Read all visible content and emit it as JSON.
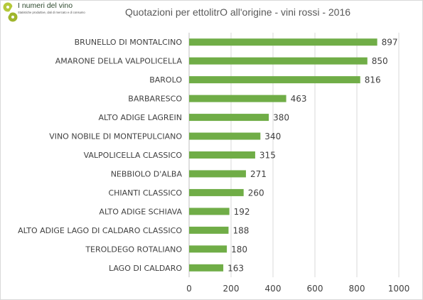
{
  "logo": {
    "title": "I numeri del vino",
    "subtitle": "Statistiche produttive, dati di mercato e di consumo"
  },
  "chart_data": {
    "type": "bar",
    "orientation": "horizontal",
    "title": "Quotazioni per ettolitrO all'origine - vini rossi - 2016",
    "xlabel": "",
    "ylabel": "",
    "xlim": [
      0,
      1000
    ],
    "x_ticks": [
      0,
      200,
      400,
      600,
      800,
      1000
    ],
    "grid": "vertical",
    "legend": "none",
    "bar_color": "#70ad47",
    "categories": [
      "BRUNELLO DI MONTALCINO",
      "AMARONE DELLA VALPOLICELLA",
      "BAROLO",
      "BARBARESCO",
      "ALTO ADIGE LAGREIN",
      "VINO NOBILE DI MONTEPULCIANO",
      "VALPOLICELLA CLASSICO",
      "NEBBIOLO D'ALBA",
      "CHIANTI CLASSICO",
      "ALTO ADIGE SCHIAVA",
      "ALTO ADIGE LAGO DI CALDARO CLASSICO",
      "TEROLDEGO ROTALIANO",
      "LAGO DI CALDARO"
    ],
    "values": [
      897,
      850,
      816,
      463,
      380,
      340,
      315,
      271,
      260,
      192,
      188,
      180,
      163
    ]
  }
}
